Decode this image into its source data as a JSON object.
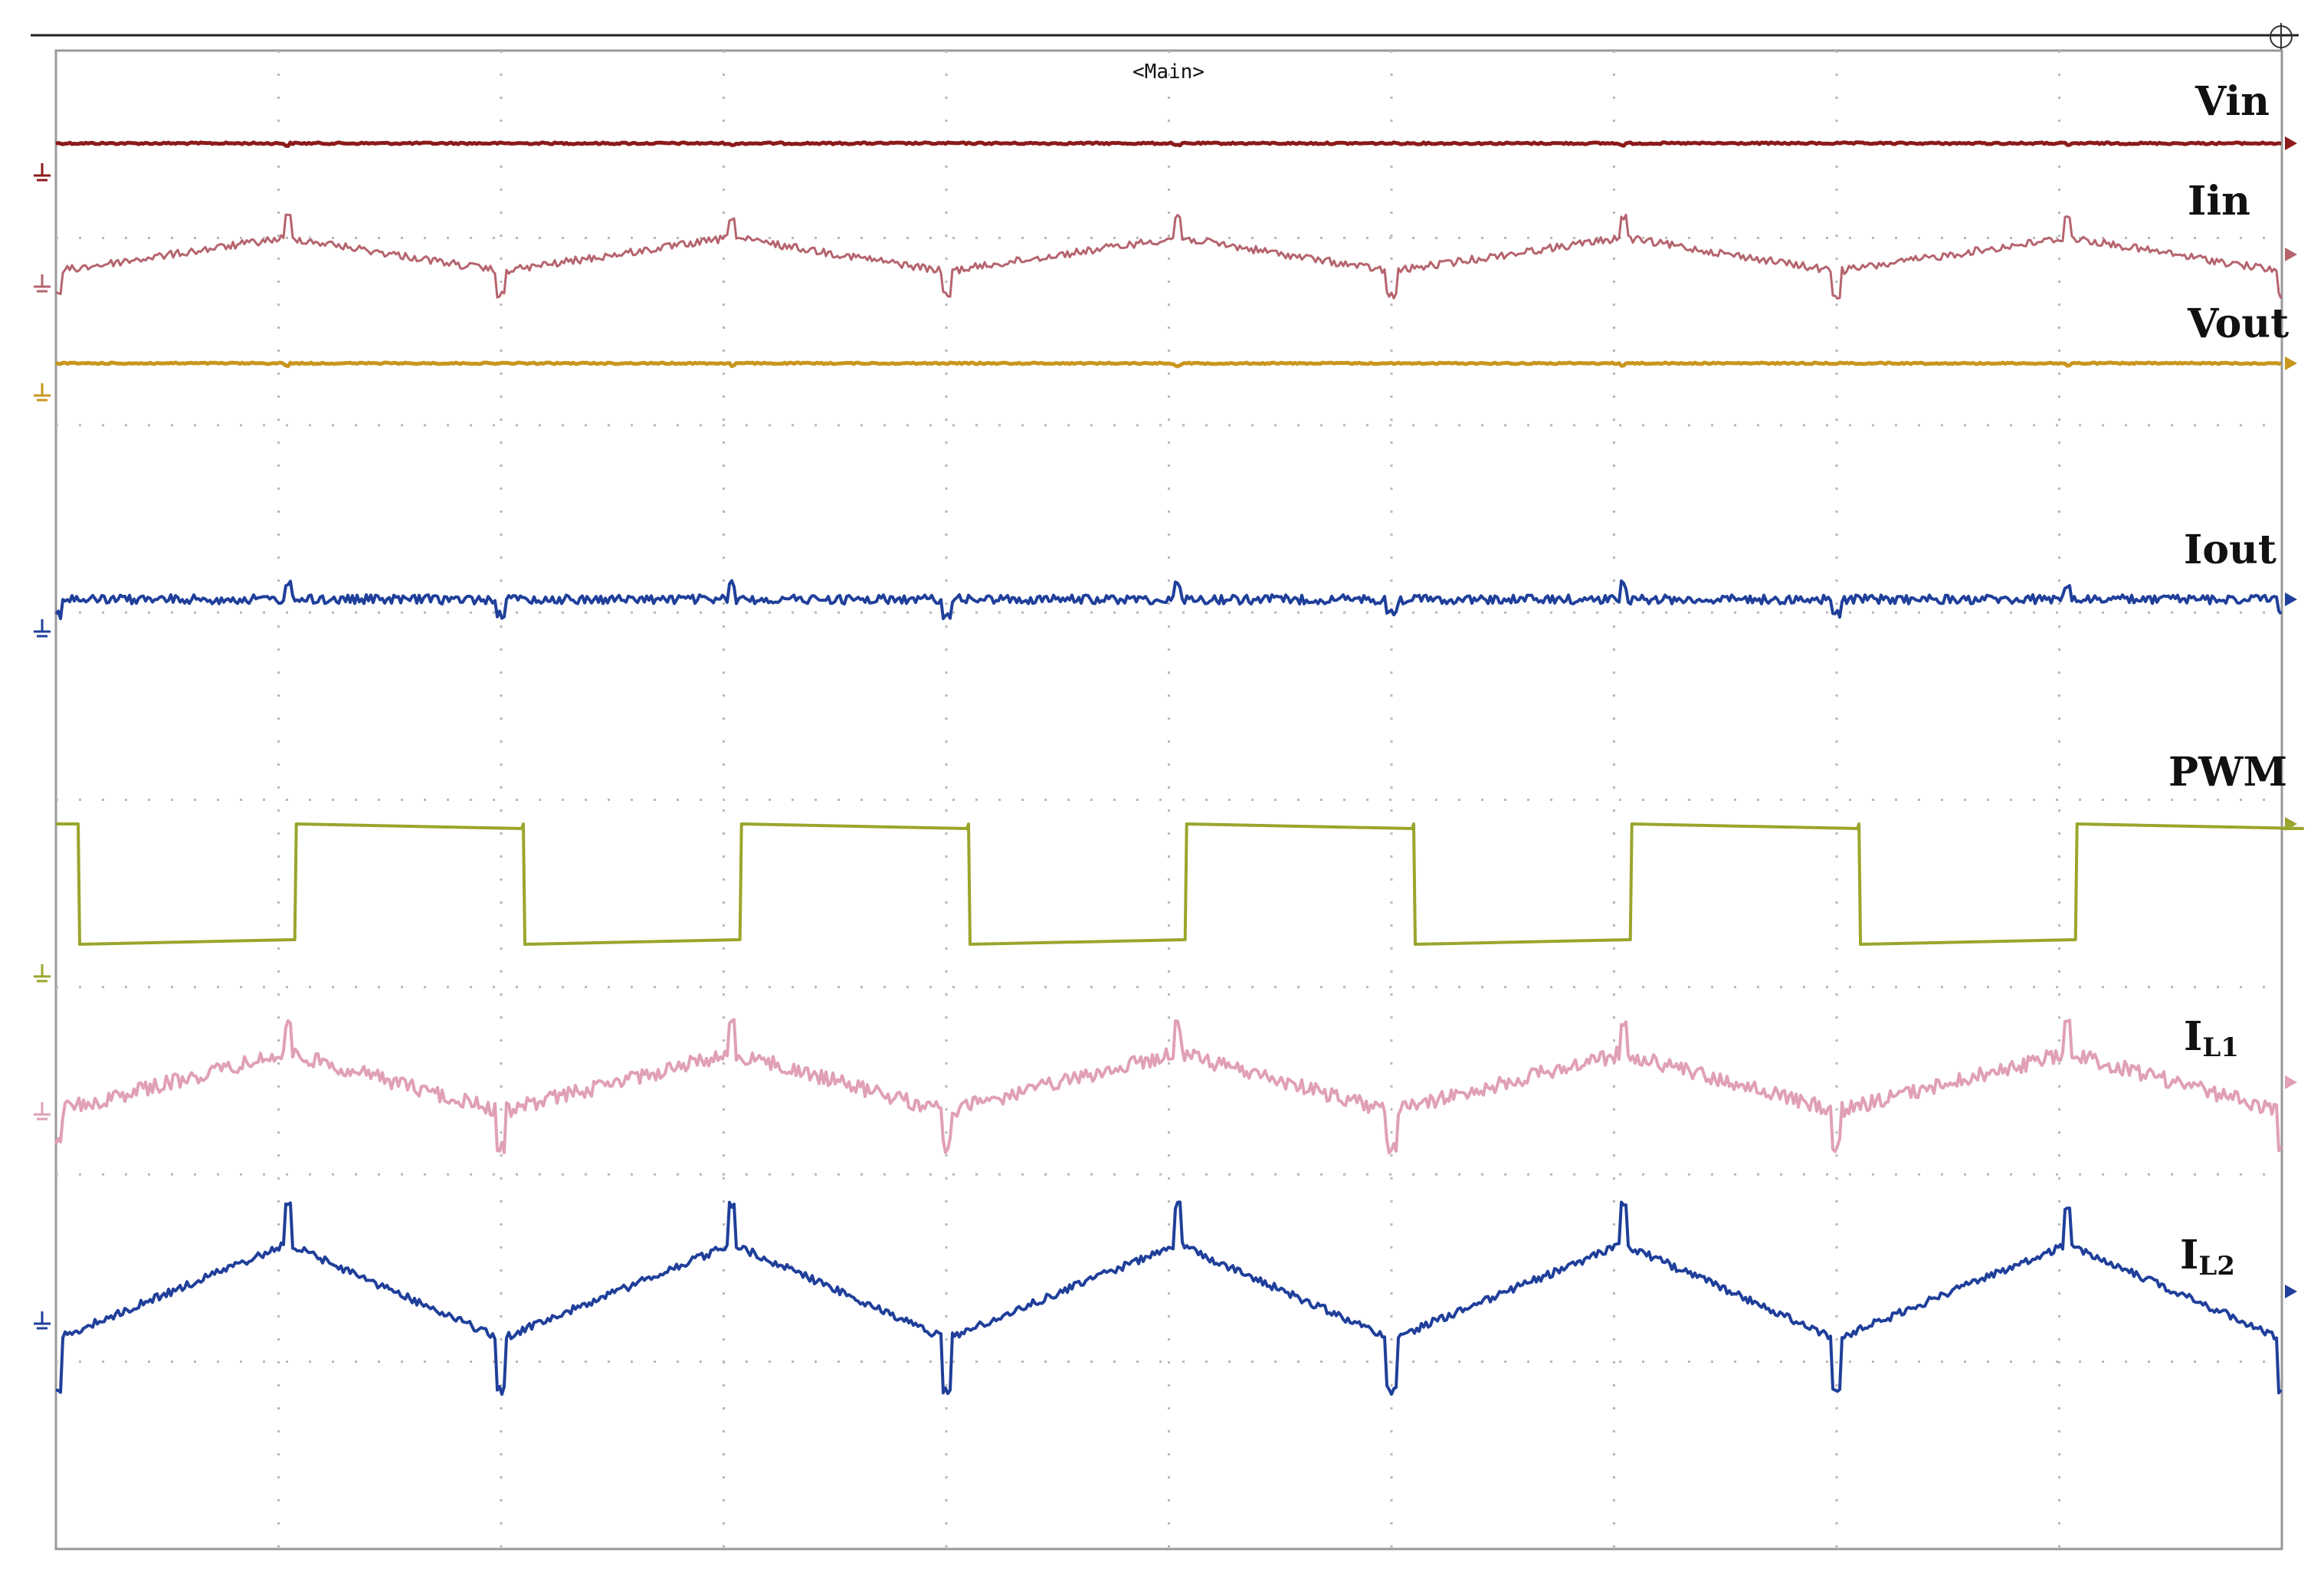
{
  "header": {
    "label": "<Main>"
  },
  "chart_data": {
    "type": "line",
    "title": "",
    "xlabel": "",
    "ylabel": "",
    "grid": true,
    "grid_divisions": {
      "horizontal": 10,
      "vertical": 8
    },
    "x_range": [
      0,
      10
    ],
    "switching_periods_shown": 5,
    "period_divisions": 2,
    "pwm_high_fraction_of_period": 0.51,
    "series": [
      {
        "name_main": "Vin",
        "name_sub": "",
        "color": "#8c1a1a",
        "shape": "dc",
        "ripple": 0.005
      },
      {
        "name_main": "Iin",
        "name_sub": "",
        "color": "#b5646e",
        "shape": "triangular",
        "ripple": 0.05
      },
      {
        "name_main": "Vout",
        "name_sub": "",
        "color": "#c9961e",
        "shape": "dc",
        "ripple": 0.004
      },
      {
        "name_main": "Iout",
        "name_sub": "",
        "color": "#1f3f9a",
        "shape": "flat-noisy",
        "ripple": 0.02
      },
      {
        "name_main": "PWM",
        "name_sub": "",
        "color": "#9aa52c",
        "shape": "square",
        "ripple": 1.0
      },
      {
        "name_main": "I",
        "name_sub": "L1",
        "color": "#e0a0b6",
        "shape": "triangular",
        "ripple": 0.12
      },
      {
        "name_main": "I",
        "name_sub": "L2",
        "color": "#1f3f9a",
        "shape": "triangular",
        "ripple": 0.3
      }
    ]
  }
}
